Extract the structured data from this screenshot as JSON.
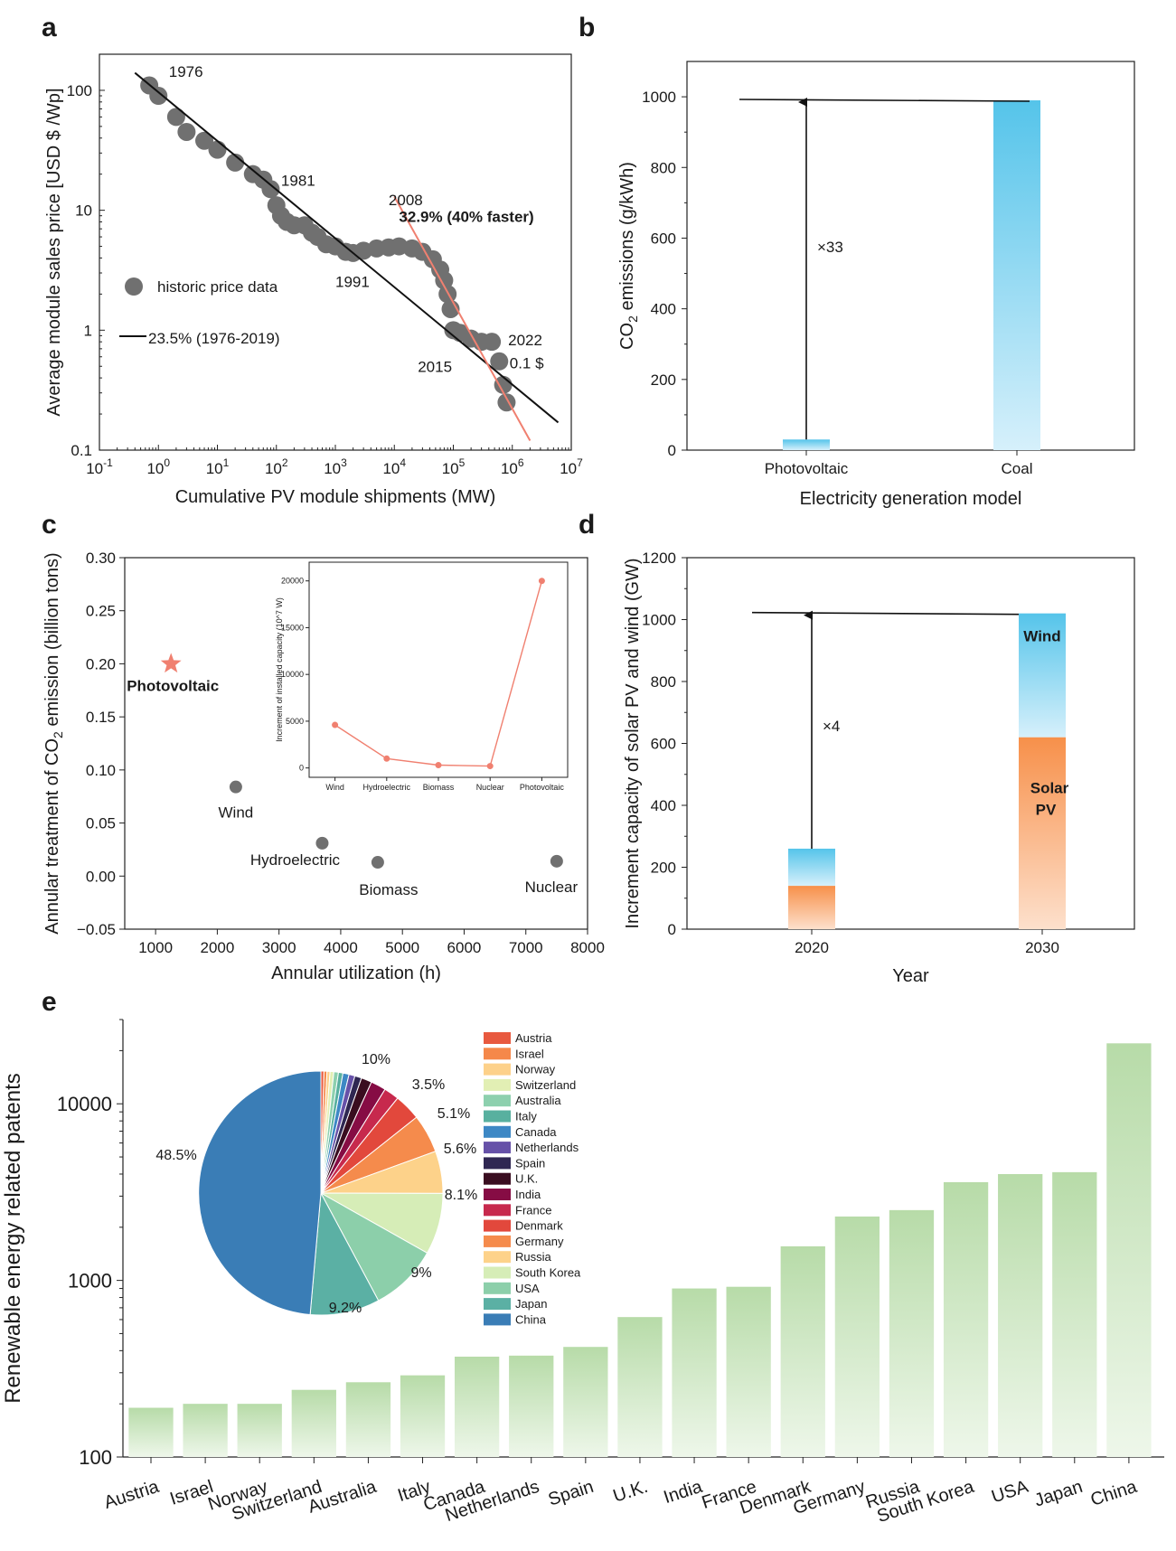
{
  "panels": {
    "a": "a",
    "b": "b",
    "c": "c",
    "d": "d",
    "e": "e"
  },
  "chart_data": [
    {
      "panel": "a",
      "type": "scatter",
      "xlabel": "Cumulative PV module shipments (MW)",
      "ylabel": "Average module sales price [USD $ /Wp]",
      "xscale": "log",
      "yscale": "log",
      "xlim": [
        0.1,
        10000000
      ],
      "ylim": [
        0.1,
        200
      ],
      "xticks": [
        0.1,
        1,
        10,
        100,
        1000,
        10000,
        100000,
        1000000,
        10000000
      ],
      "xtick_labels": [
        "10^-1",
        "10^0",
        "10^1",
        "10^2",
        "10^3",
        "10^4",
        "10^5",
        "10^6",
        "10^7"
      ],
      "yticks": [
        0.1,
        1,
        10,
        100
      ],
      "ytick_labels": [
        "0.1",
        "1",
        "10",
        "100"
      ],
      "series": [
        {
          "name": "historic price data",
          "color": "#707070",
          "x": [
            0.7,
            1.0,
            2.0,
            3.0,
            6.0,
            10,
            20,
            40,
            60,
            80,
            100,
            120,
            150,
            200,
            300,
            400,
            500,
            700,
            1000,
            1500,
            2000,
            3000,
            5000,
            8000,
            12000,
            20000,
            30000,
            45000,
            60000,
            70000,
            80000,
            90000,
            100000,
            130000,
            200000,
            300000,
            450000,
            600000,
            700000,
            800000
          ],
          "y": [
            110,
            90,
            60,
            45,
            38,
            32,
            25,
            20,
            18,
            15,
            11,
            9,
            8,
            7.5,
            7.5,
            6.5,
            6,
            5.2,
            5,
            4.5,
            4.4,
            4.6,
            4.8,
            4.9,
            5.0,
            4.8,
            4.5,
            3.9,
            3.2,
            2.6,
            2.0,
            1.5,
            1.0,
            0.95,
            0.85,
            0.8,
            0.8,
            0.55,
            0.35,
            0.25
          ]
        }
      ],
      "fits": [
        {
          "label": "23.5% (1976-2019)",
          "color": "#111111",
          "x": [
            0.4,
            6000000
          ],
          "y": [
            140,
            0.17
          ]
        },
        {
          "label": "32.9% (40% faster)",
          "color": "#f08070",
          "x": [
            10000,
            2000000
          ],
          "y": [
            13,
            0.12
          ]
        }
      ],
      "legend": "historic price data",
      "fit_legend": "23.5% (1976-2019)",
      "annotations": [
        {
          "text": "1976",
          "x": 1.5,
          "y": 130
        },
        {
          "text": "1981",
          "x": 120,
          "y": 16
        },
        {
          "text": "2008",
          "x": 8000,
          "y": 11
        },
        {
          "text": "32.9% (40% faster)",
          "x": 12000,
          "y": 8
        },
        {
          "text": "1991",
          "x": 1000,
          "y": 2.3
        },
        {
          "text": "2015",
          "x": 25000,
          "y": 0.45
        },
        {
          "text": "2022",
          "x": 850000,
          "y": 0.75
        },
        {
          "text": "0.1 $",
          "x": 900000,
          "y": 0.48
        }
      ]
    },
    {
      "panel": "b",
      "type": "bar",
      "categories": [
        "Photovoltaic",
        "Coal"
      ],
      "values": [
        30,
        990
      ],
      "xlabel": "Electricity generation model",
      "ylabel": "CO2 emissions (g/kWh)",
      "ylim": [
        0,
        1100
      ],
      "yticks": [
        0,
        200,
        400,
        600,
        800,
        1000
      ],
      "colors": [
        "#55c4ea",
        "#55c4ea"
      ],
      "annotation": "×33"
    },
    {
      "panel": "c",
      "type": "scatter",
      "xlabel": "Annular utilization  (h)",
      "ylabel": "Annular treatment of CO2 emission (billion tons)",
      "xlim": [
        500,
        8000
      ],
      "ylim": [
        -0.05,
        0.3
      ],
      "xticks": [
        1000,
        2000,
        3000,
        4000,
        5000,
        6000,
        7000,
        8000
      ],
      "yticks": [
        -0.05,
        0.0,
        0.05,
        0.1,
        0.15,
        0.2,
        0.25,
        0.3
      ],
      "ytick_labels": [
        "−0.05",
        "0.00",
        "0.05",
        "0.10",
        "0.15",
        "0.20",
        "0.25",
        "0.30"
      ],
      "points": [
        {
          "label": "Photovoltaic",
          "x": 1250,
          "y": 0.2,
          "color": "#f08070",
          "marker": "star"
        },
        {
          "label": "Wind",
          "x": 2300,
          "y": 0.084,
          "color": "#707070",
          "marker": "circle"
        },
        {
          "label": "Hydroelectric",
          "x": 3700,
          "y": 0.031,
          "color": "#707070",
          "marker": "circle"
        },
        {
          "label": "Biomass",
          "x": 4600,
          "y": 0.013,
          "color": "#707070",
          "marker": "circle"
        },
        {
          "label": "Nuclear",
          "x": 7500,
          "y": 0.014,
          "color": "#707070",
          "marker": "circle"
        }
      ],
      "inset": {
        "type": "line",
        "categories": [
          "Wind",
          "Hydroelectric",
          "Biomass",
          "Nuclear",
          "Photovoltaic"
        ],
        "values": [
          4600,
          1000,
          300,
          200,
          20000
        ],
        "ylabel": "Increment of installed capacity (10^7 W)",
        "ylim": [
          -1000,
          22000
        ],
        "yticks": [
          0,
          5000,
          10000,
          15000,
          20000
        ],
        "color": "#f08070"
      }
    },
    {
      "panel": "d",
      "type": "bar",
      "categories": [
        "2020",
        "2030"
      ],
      "series": [
        {
          "name": "Solar PV",
          "values": [
            140,
            620
          ],
          "color": "#f7904a"
        },
        {
          "name": "Wind",
          "values": [
            120,
            400
          ],
          "color": "#55c4ea"
        }
      ],
      "xlabel": "Year",
      "ylabel": "Increment capacity of solar PV and wind (GW)",
      "ylim": [
        0,
        1200
      ],
      "yticks": [
        0,
        200,
        400,
        600,
        800,
        1000,
        1200
      ],
      "labels": {
        "wind": "Wind",
        "solar1": "Solar",
        "solar2": "PV"
      },
      "annotation": "×4"
    },
    {
      "panel": "e",
      "type": "bar",
      "ylabel": "Renewable energy related patents",
      "yscale": "log",
      "ylim": [
        100,
        30000
      ],
      "yticks": [
        100,
        1000,
        10000
      ],
      "categories": [
        "Austria",
        "Israel",
        "Norway",
        "Switzerland",
        "Australia",
        "Italy",
        "Canada",
        "Netherlands",
        "Spain",
        "U.K.",
        "India",
        "France",
        "Denmark",
        "Germany",
        "Russia",
        "South Korea",
        "USA",
        "Japan",
        "China"
      ],
      "values": [
        190,
        200,
        200,
        240,
        265,
        290,
        370,
        375,
        420,
        620,
        900,
        920,
        1560,
        2300,
        2500,
        3600,
        4000,
        4100,
        22000
      ],
      "color": "#b7dba8",
      "pie": {
        "categories": [
          "Austria",
          "Israel",
          "Norway",
          "Switzerland",
          "Australia",
          "Italy",
          "Canada",
          "Netherlands",
          "Spain",
          "U.K.",
          "India",
          "France",
          "Denmark",
          "Germany",
          "Russia",
          "South Korea",
          "USA",
          "Japan",
          "China"
        ],
        "values": [
          0.4,
          0.4,
          0.4,
          0.5,
          0.6,
          0.6,
          0.8,
          0.8,
          0.9,
          1.4,
          2.0,
          2.0,
          3.5,
          5.1,
          5.6,
          8.1,
          9.0,
          9.2,
          48.5
        ],
        "colors": [
          "#e8593f",
          "#f5884a",
          "#fdd18a",
          "#e2efb4",
          "#8dd0ae",
          "#58b09f",
          "#3d88c5",
          "#6651a8",
          "#2f2752",
          "#3a0d20",
          "#860c44",
          "#c7294d",
          "#e2483c",
          "#f58b4c",
          "#fdd28a",
          "#d6edb7",
          "#8ccfaa",
          "#5bb0a4",
          "#3a7db6"
        ],
        "labels": [
          {
            "text": "10%"
          },
          {
            "text": "3.5%"
          },
          {
            "text": "5.1%"
          },
          {
            "text": "5.6%"
          },
          {
            "text": "8.1%"
          },
          {
            "text": "9%"
          },
          {
            "text": "9.2%"
          },
          {
            "text": "48.5%"
          }
        ]
      }
    }
  ]
}
